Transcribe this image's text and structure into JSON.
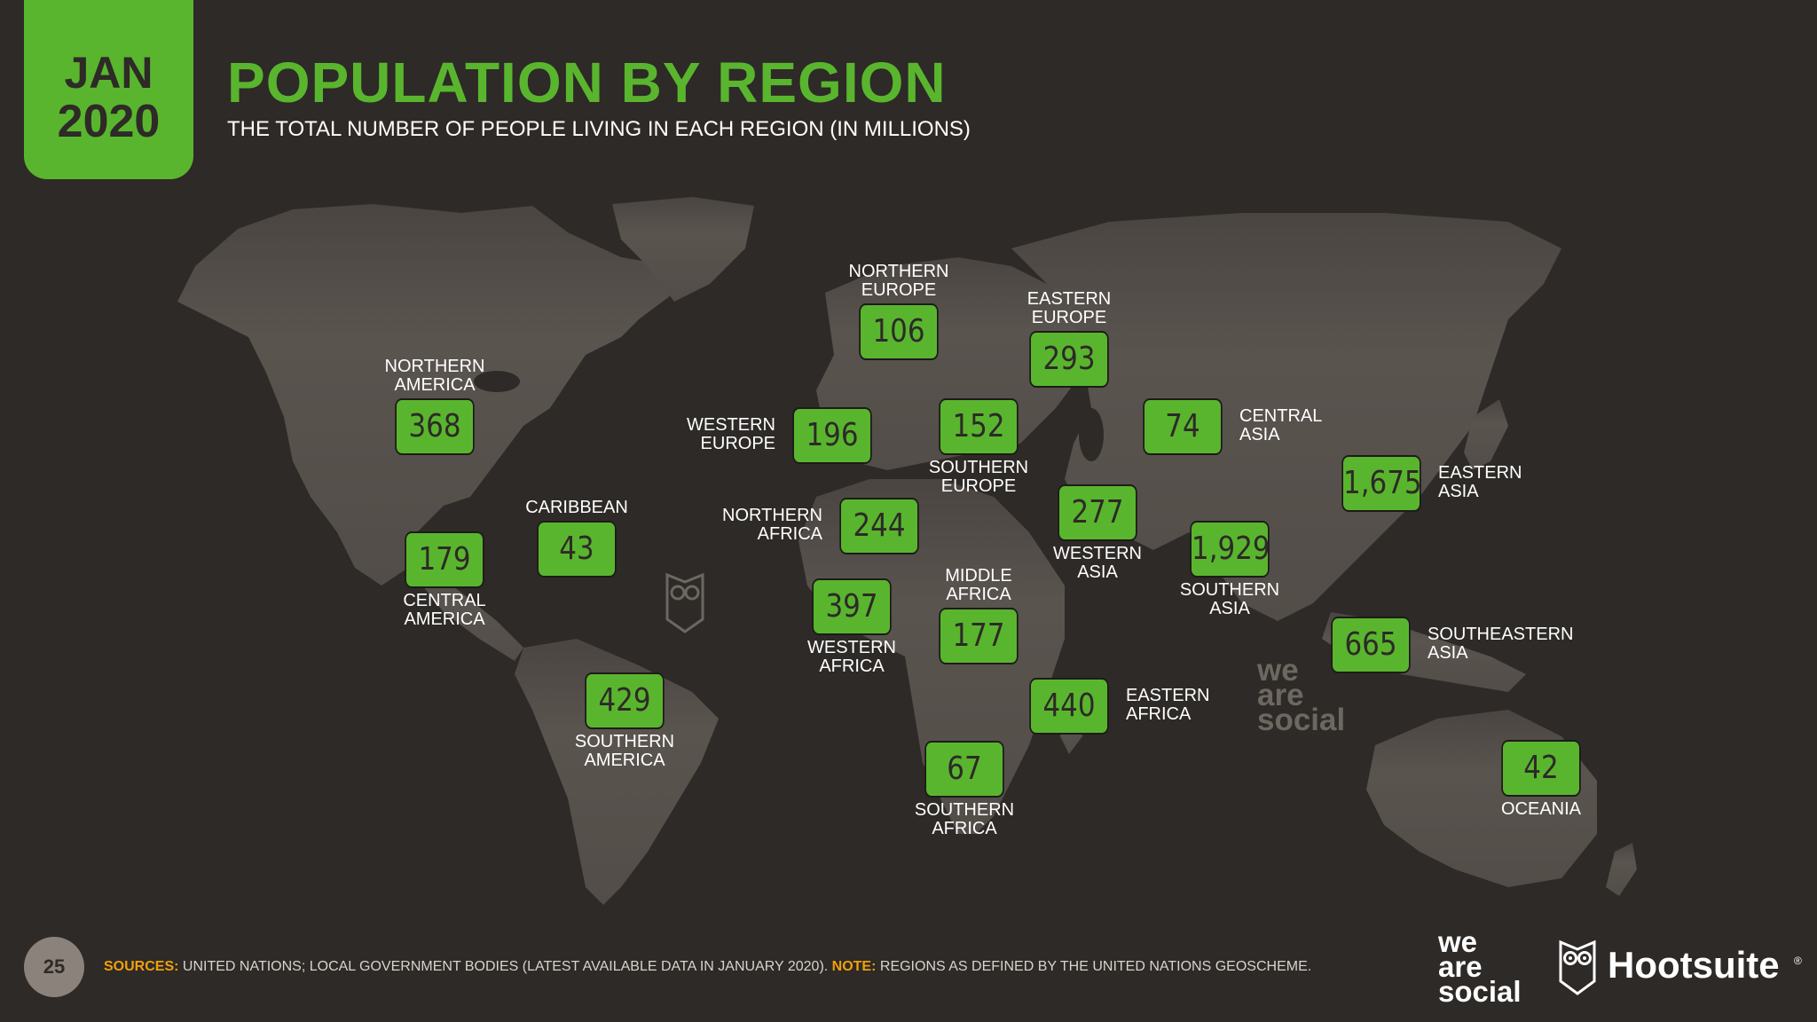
{
  "header": {
    "month": "JAN",
    "year": "2020",
    "title": "POPULATION BY REGION",
    "subtitle": "THE TOTAL NUMBER OF PEOPLE LIVING IN EACH REGION (IN MILLIONS)"
  },
  "regions": [
    {
      "name": "NORTHERN\nAMERICA",
      "value": "368",
      "label_pos": "above"
    },
    {
      "name": "CENTRAL\nAMERICA",
      "value": "179",
      "label_pos": "below"
    },
    {
      "name": "CARIBBEAN",
      "value": "43",
      "label_pos": "above"
    },
    {
      "name": "SOUTHERN\nAMERICA",
      "value": "429",
      "label_pos": "below"
    },
    {
      "name": "NORTHERN\nEUROPE",
      "value": "106",
      "label_pos": "above"
    },
    {
      "name": "WESTERN\nEUROPE",
      "value": "196",
      "label_pos": "left"
    },
    {
      "name": "SOUTHERN\nEUROPE",
      "value": "152",
      "label_pos": "below"
    },
    {
      "name": "EASTERN\nEUROPE",
      "value": "293",
      "label_pos": "above"
    },
    {
      "name": "CENTRAL\nASIA",
      "value": "74",
      "label_pos": "right"
    },
    {
      "name": "NORTHERN\nAFRICA",
      "value": "244",
      "label_pos": "left"
    },
    {
      "name": "WESTERN\nASIA",
      "value": "277",
      "label_pos": "below"
    },
    {
      "name": "SOUTHERN\nASIA",
      "value": "1,929",
      "label_pos": "below"
    },
    {
      "name": "EASTERN\nASIA",
      "value": "1,675",
      "label_pos": "right"
    },
    {
      "name": "WESTERN\nAFRICA",
      "value": "397",
      "label_pos": "below"
    },
    {
      "name": "MIDDLE\nAFRICA",
      "value": "177",
      "label_pos": "above"
    },
    {
      "name": "EASTERN\nAFRICA",
      "value": "440",
      "label_pos": "right"
    },
    {
      "name": "SOUTHERN\nAFRICA",
      "value": "67",
      "label_pos": "below"
    },
    {
      "name": "SOUTHEASTERN\nASIA",
      "value": "665",
      "label_pos": "right"
    },
    {
      "name": "OCEANIA",
      "value": "42",
      "label_pos": "below"
    }
  ],
  "footer": {
    "page_number": "25",
    "sources_key": "SOURCES:",
    "sources_text": " UNITED NATIONS; LOCAL GOVERNMENT BODIES (LATEST AVAILABLE DATA IN JANUARY 2020). ",
    "note_key": "NOTE:",
    "note_text": " REGIONS AS DEFINED BY THE UNITED NATIONS GEOSCHEME."
  },
  "logos": {
    "we_are_social": "we\nare\nsocial",
    "hootsuite": "Hootsuite",
    "hootsuite_mark": "®",
    "watermark": "we\nare\nsocial"
  },
  "colors": {
    "background": "#2d2a27",
    "accent": "#5ab52e",
    "land": "#5a544f",
    "highlight": "#f0a00a"
  }
}
